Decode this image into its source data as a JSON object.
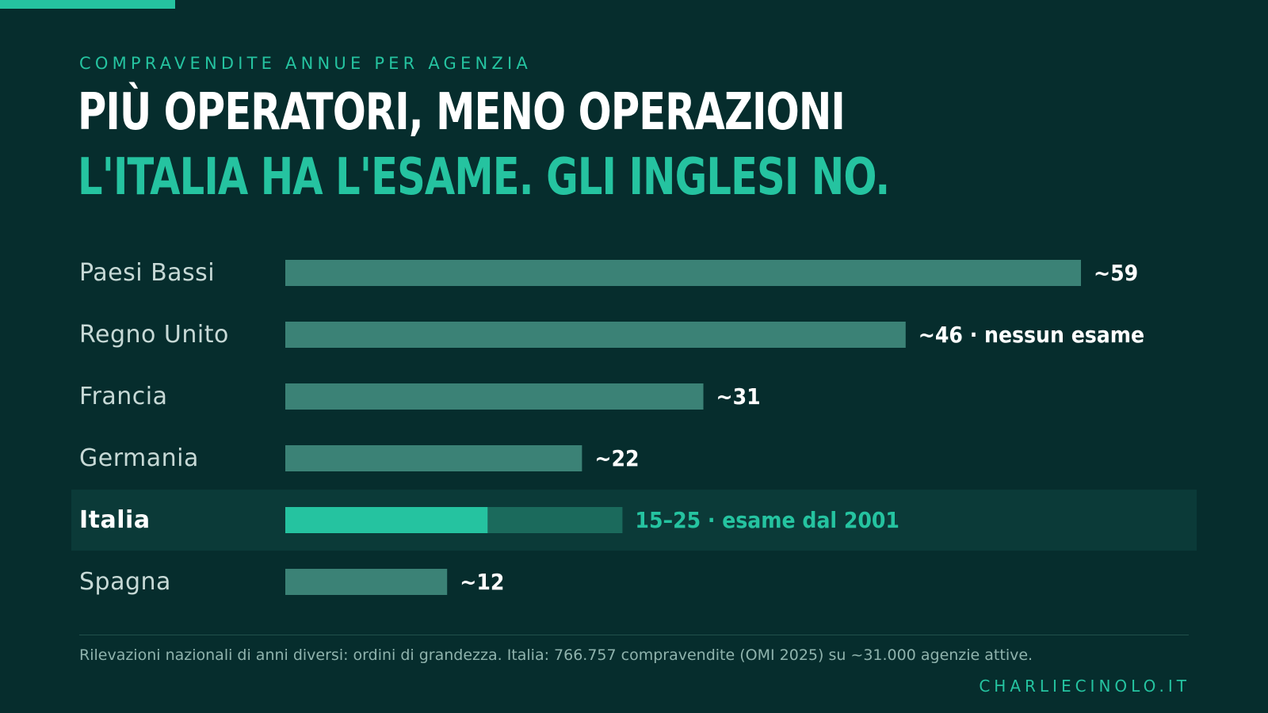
{
  "header": {
    "kicker": "COMPRAVENDITE ANNUE PER AGENZIA",
    "title": "PIÙ OPERATORI, MENO OPERAZIONI",
    "subtitle": "L'ITALIA HA L'ESAME. GLI INGLESI NO."
  },
  "chart_data": {
    "type": "bar",
    "orientation": "horizontal",
    "categories": [
      "Paesi Bassi",
      "Regno Unito",
      "Francia",
      "Germania",
      "Italia",
      "Spagna"
    ],
    "values": [
      59,
      46,
      31,
      22,
      25,
      12
    ],
    "range_low": [
      null,
      null,
      null,
      null,
      15,
      null
    ],
    "data_labels": [
      "~59",
      "~46 · nessun esame",
      "~31",
      "~22",
      "15–25 · esame dal 2001",
      "~12"
    ],
    "highlight": "Italia",
    "xlim": [
      0,
      70
    ],
    "grid": false,
    "legend": "none"
  },
  "colors": {
    "background": "#062d2d",
    "bar": "#3b8276",
    "accent": "#25c3a0",
    "range_bar": "#1b6a5c",
    "highlight_band": "#0b3a38",
    "label_text": "#c7d9d6"
  },
  "footer": {
    "footnote": "Rilevazioni nazionali di anni diversi: ordini di grandezza. Italia: 766.757 compravendite (OMI 2025) su ~31.000 agenzie attive.",
    "credit": "CHARLIECINOLO.IT"
  }
}
